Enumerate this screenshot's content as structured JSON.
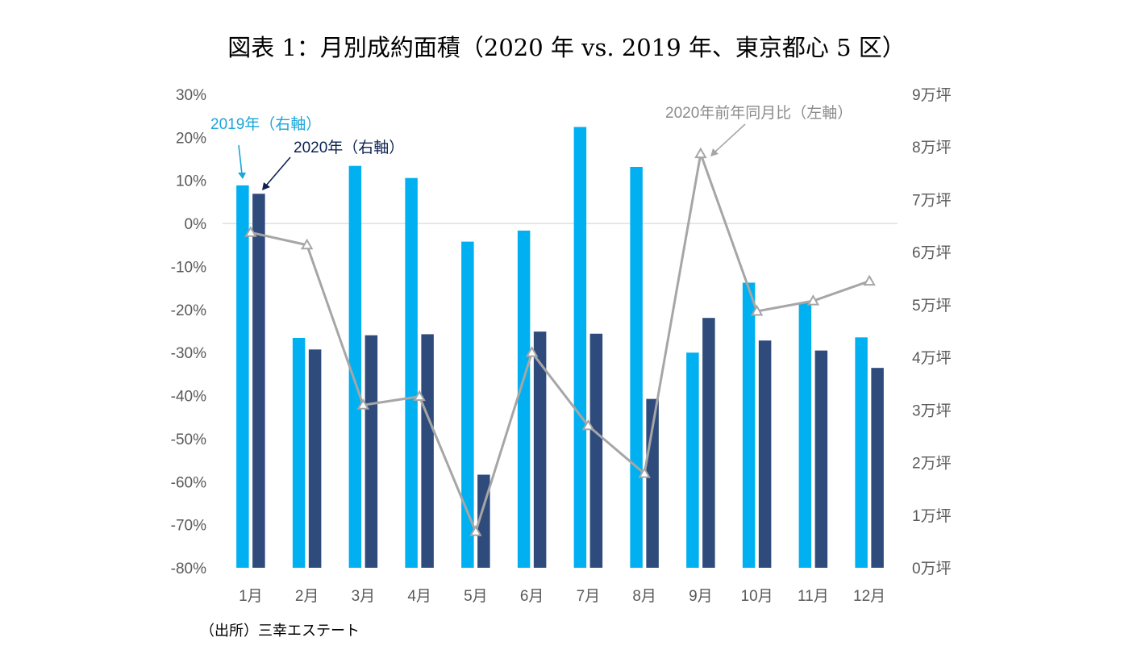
{
  "chart_data": {
    "type": "bar",
    "title": "図表 1：月別成約面積（2020 年 vs. 2019 年、東京都心 5 区）",
    "categories": [
      "1月",
      "2月",
      "3月",
      "4月",
      "5月",
      "6月",
      "7月",
      "8月",
      "9月",
      "10月",
      "11月",
      "12月"
    ],
    "series": [
      {
        "name": "2019年（右軸）",
        "type": "bar",
        "axis": "right",
        "unit": "万坪",
        "color": "#00B0F0",
        "values": [
          7.27,
          4.37,
          7.64,
          7.41,
          6.2,
          6.41,
          8.38,
          7.62,
          4.09,
          5.42,
          5.03,
          4.38
        ]
      },
      {
        "name": "2020年（右軸）",
        "type": "bar",
        "axis": "right",
        "unit": "万坪",
        "color": "#2F4B7C",
        "values": [
          7.11,
          4.15,
          4.42,
          4.44,
          1.77,
          4.49,
          4.45,
          3.21,
          4.75,
          4.32,
          4.13,
          3.8
        ]
      },
      {
        "name": "2020年前年同月比（左軸）",
        "type": "line",
        "axis": "left",
        "unit": "%",
        "color": "#A6A6A6",
        "marker": "triangle-open",
        "values": [
          -2.1,
          -5.0,
          -42.2,
          -40.2,
          -71.6,
          -30.0,
          -47.0,
          -58.1,
          16.2,
          -20.4,
          -18.0,
          -13.4
        ]
      }
    ],
    "left_axis": {
      "min": -80,
      "max": 30,
      "step": 10,
      "tick_labels": [
        "30%",
        "20%",
        "10%",
        "0%",
        "-10%",
        "-20%",
        "-30%",
        "-40%",
        "-50%",
        "-60%",
        "-70%",
        "-80%"
      ]
    },
    "right_axis": {
      "min": 0,
      "max": 9,
      "step": 1,
      "tick_labels": [
        "9万坪",
        "8万坪",
        "7万坪",
        "6万坪",
        "5万坪",
        "4万坪",
        "3万坪",
        "2万坪",
        "1万坪",
        "0万坪"
      ]
    },
    "gridlines": "zero-line only",
    "legend": "inline annotations with arrows"
  },
  "annotations": {
    "label_2019": "2019年（右軸）",
    "label_2020": "2020年（右軸）",
    "label_yoy": "2020年前年同月比（左軸）"
  },
  "colors": {
    "bar_2019": "#00B0F0",
    "bar_2020": "#2F4B7C",
    "line_yoy": "#A6A6A6",
    "anno_2019": "#1AA6DA",
    "anno_2020": "#0E2251",
    "anno_yoy": "#8C8C8C",
    "tick": "#595959",
    "zero_line": "#D9D9D9"
  },
  "source": "（出所）三幸エステート"
}
